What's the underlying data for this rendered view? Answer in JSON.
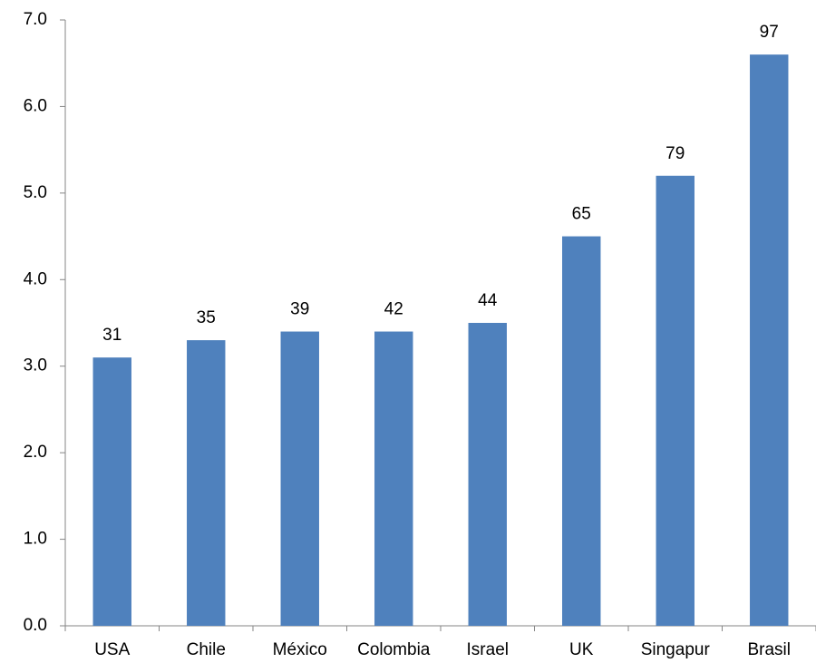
{
  "chart_data": {
    "type": "bar",
    "categories": [
      "USA",
      "Chile",
      "México",
      "Colombia",
      "Israel",
      "UK",
      "Singapur",
      "Brasil"
    ],
    "values": [
      3.1,
      3.3,
      3.4,
      3.4,
      3.5,
      4.5,
      5.2,
      6.6
    ],
    "data_labels": [
      31,
      35,
      39,
      42,
      44,
      65,
      79,
      97
    ],
    "color": "#4f81bd",
    "ylim": [
      0,
      7
    ],
    "yticks": [
      {
        "value": 0,
        "label": "0.0"
      },
      {
        "value": 1,
        "label": "1.0"
      },
      {
        "value": 2,
        "label": "2.0"
      },
      {
        "value": 3,
        "label": "3.0"
      },
      {
        "value": 4,
        "label": "4.0"
      },
      {
        "value": 5,
        "label": "5.0"
      },
      {
        "value": 6,
        "label": "6.0"
      },
      {
        "value": 7,
        "label": "7.0"
      }
    ],
    "grid": false
  }
}
